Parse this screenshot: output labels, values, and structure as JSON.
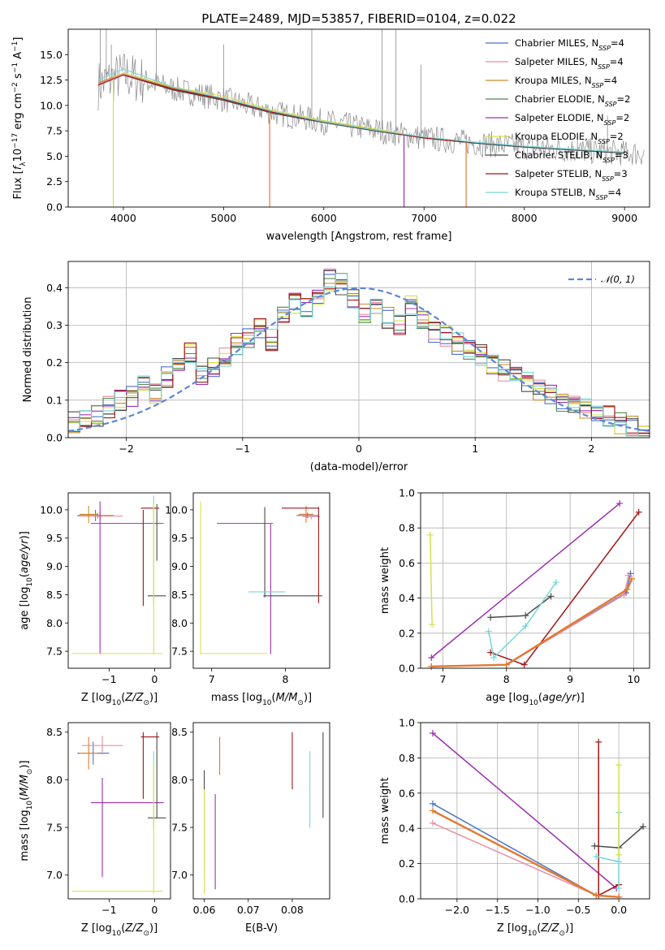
{
  "chart_data": [
    {
      "type": "line",
      "title": "PLATE=2489, MJD=53857, FIBERID=0104, z=0.022",
      "xlabel": "wavelength [Angstrom, rest frame]",
      "ylabel": "Flux [f_λ10^-17 erg cm^-2 s^-1 A^-1]",
      "xlim": [
        3450,
        9250
      ],
      "ylim": [
        0,
        17.5
      ],
      "xticks": [
        "4000",
        "5000",
        "6000",
        "7000",
        "8000",
        "9000"
      ],
      "yticks": [
        "0.0",
        "2.5",
        "5.0",
        "7.5",
        "10.0",
        "12.5",
        "15.0"
      ],
      "grid": false,
      "legend_position": "top-right",
      "series": [
        {
          "name": "Chabrier MILES, N_SSP=4",
          "color": "#4f72c4",
          "x": [
            3750,
            4000,
            4500,
            5000,
            5500,
            6000,
            6500,
            7000,
            7500,
            8000,
            8500,
            9000
          ],
          "values": [
            12.0,
            13.0,
            11.6,
            10.6,
            9.3,
            8.4,
            7.6,
            6.8,
            6.3,
            5.9,
            5.6,
            5.3
          ]
        },
        {
          "name": "Salpeter MILES, N_SSP=4",
          "color": "#e88fa3",
          "x": [
            3750,
            4000,
            4500,
            5000,
            5500,
            6000,
            6500,
            7000,
            7500
          ],
          "values": [
            12.1,
            13.1,
            11.7,
            10.7,
            9.3,
            8.4,
            7.6,
            6.8,
            6.3
          ]
        },
        {
          "name": "Kroupa MILES, N_SSP=4",
          "color": "#c88a2a",
          "x": [
            3750,
            4000,
            4500,
            5000,
            5500,
            6000,
            6500,
            7000,
            7500
          ],
          "values": [
            12.2,
            13.2,
            11.7,
            10.7,
            9.4,
            8.4,
            7.6,
            6.8,
            6.3
          ]
        },
        {
          "name": "Chabrier ELODIE, N_SSP=2",
          "color": "#4f8a4f",
          "x": [
            4000,
            4500,
            5000,
            5500,
            6000,
            6500,
            6800
          ],
          "values": [
            13.0,
            11.6,
            10.6,
            9.3,
            8.4,
            7.6,
            7.1
          ]
        },
        {
          "name": "Salpeter ELODIE, N_SSP=2",
          "color": "#9b30b0",
          "x": [
            4000,
            4500,
            5000,
            5500,
            6000,
            6500,
            6800
          ],
          "values": [
            13.0,
            11.6,
            10.6,
            9.3,
            8.4,
            7.6,
            7.1
          ]
        },
        {
          "name": "Kroupa ELODIE, N_SSP=2",
          "color": "#d6e04a",
          "x": [
            3900,
            4000,
            4500,
            5000,
            5500,
            6000,
            6500,
            6800
          ],
          "values": [
            12.8,
            13.2,
            11.8,
            10.9,
            9.5,
            8.5,
            7.7,
            7.2
          ]
        },
        {
          "name": "Chabrier STELIB, N_SSP=3",
          "color": "#4a4a4a",
          "x": [
            3750,
            4000,
            4500,
            5000,
            5500,
            6000,
            6500,
            7000,
            7500,
            8000,
            8500,
            9000
          ],
          "values": [
            12.0,
            13.0,
            11.5,
            10.5,
            9.2,
            8.3,
            7.5,
            6.8,
            6.3,
            5.9,
            5.6,
            5.3
          ]
        },
        {
          "name": "Salpeter STELIB, N_SSP=3",
          "color": "#a31515",
          "x": [
            3750,
            4000,
            4500,
            5000,
            5500,
            6000,
            6500,
            7000,
            7400
          ],
          "values": [
            12.0,
            13.0,
            11.6,
            10.6,
            9.3,
            8.4,
            7.6,
            6.8,
            6.4
          ]
        },
        {
          "name": "Kroupa STELIB, N_SSP=4",
          "color": "#78d6d6",
          "x": [
            3750,
            4000,
            4500,
            5000,
            5500,
            6000,
            6500,
            7000,
            7500,
            8000,
            8500,
            9000
          ],
          "values": [
            12.5,
            13.6,
            11.8,
            10.7,
            9.4,
            8.4,
            7.6,
            6.9,
            6.4,
            6.0,
            5.7,
            5.4
          ]
        }
      ]
    },
    {
      "type": "line",
      "xlabel": "(data-model)/error",
      "ylabel": "Normed distribution",
      "xlim": [
        -2.5,
        2.5
      ],
      "ylim": [
        0,
        0.47
      ],
      "xticks": [
        "−2",
        "−1",
        "0",
        "1",
        "2"
      ],
      "yticks": [
        "0.0",
        "0.1",
        "0.2",
        "0.3",
        "0.4"
      ],
      "grid": true,
      "legend_position": "top-right",
      "series": [
        {
          "name": "𝒩(0, 1)",
          "color": "#5f86d6",
          "style": "dashed",
          "x": [
            -2.5,
            -2.0,
            -1.5,
            -1.0,
            -0.5,
            0,
            0.5,
            1.0,
            1.5,
            2.0,
            2.5
          ],
          "values": [
            0.018,
            0.054,
            0.13,
            0.242,
            0.352,
            0.399,
            0.352,
            0.242,
            0.13,
            0.054,
            0.018
          ]
        }
      ],
      "histogram": {
        "bin_edges": [
          -2.5,
          -2.4,
          -2.3,
          -2.2,
          -2.1,
          -2.0,
          -1.9,
          -1.8,
          -1.7,
          -1.6,
          -1.5,
          -1.4,
          -1.3,
          -1.2,
          -1.1,
          -1.0,
          -0.9,
          -0.8,
          -0.7,
          -0.6,
          -0.5,
          -0.4,
          -0.3,
          -0.2,
          -0.1,
          0.0,
          0.1,
          0.2,
          0.3,
          0.4,
          0.5,
          0.6,
          0.7,
          0.8,
          0.9,
          1.0,
          1.1,
          1.2,
          1.3,
          1.4,
          1.5,
          1.6,
          1.7,
          1.8,
          1.9,
          2.0,
          2.1,
          2.2,
          2.3,
          2.4,
          2.5
        ],
        "densities": [
          0.04,
          0.05,
          0.06,
          0.08,
          0.1,
          0.11,
          0.15,
          0.12,
          0.16,
          0.19,
          0.23,
          0.17,
          0.19,
          0.21,
          0.25,
          0.27,
          0.29,
          0.26,
          0.33,
          0.36,
          0.35,
          0.38,
          0.42,
          0.41,
          0.37,
          0.33,
          0.36,
          0.32,
          0.3,
          0.35,
          0.31,
          0.28,
          0.27,
          0.25,
          0.23,
          0.22,
          0.2,
          0.18,
          0.16,
          0.15,
          0.13,
          0.12,
          0.1,
          0.09,
          0.08,
          0.07,
          0.06,
          0.04,
          0.03,
          0.02
        ],
        "colors": [
          "#4f72c4",
          "#e88fa3",
          "#c88a2a",
          "#4f8a4f",
          "#9b30b0",
          "#d6e04a",
          "#4a4a4a",
          "#a31515",
          "#78d6d6"
        ]
      }
    },
    {
      "type": "scatter",
      "xlabel": "Z [log10(Z/Z⊙)]",
      "ylabel": "age [log10(age/yr)]",
      "xlim": [
        -1.9,
        0.35
      ],
      "ylim": [
        7.2,
        10.3
      ],
      "xticks": [
        "−1",
        "0"
      ],
      "yticks": [
        "7.5",
        "8.0",
        "8.5",
        "9.0",
        "9.5",
        "10.0"
      ]
    },
    {
      "type": "scatter",
      "xlabel": "mass [log10(M/M⊙)]",
      "ylabel": "",
      "xlim": [
        6.75,
        8.6
      ],
      "ylim": [
        7.2,
        10.3
      ],
      "xticks": [
        "7",
        "8"
      ],
      "yticks": [
        "7.5",
        "8.0",
        "8.5",
        "9.0",
        "9.5",
        "10.0"
      ]
    },
    {
      "type": "line",
      "xlabel": "age [log10(age/yr)]",
      "ylabel": "mass weight",
      "xlim": [
        6.65,
        10.25
      ],
      "ylim": [
        0,
        1.0
      ],
      "xticks": [
        "7",
        "8",
        "9",
        "10"
      ],
      "yticks": [
        "0.0",
        "0.2",
        "0.4",
        "0.6",
        "0.8",
        "1.0"
      ],
      "grid": true,
      "series": [
        {
          "name": "",
          "color": "#9b30b0",
          "x": [
            6.82,
            9.78
          ],
          "values": [
            0.06,
            0.94
          ]
        },
        {
          "name": "",
          "color": "#a31515",
          "x": [
            7.75,
            8.28,
            10.08
          ],
          "values": [
            0.09,
            0.02,
            0.89
          ]
        },
        {
          "name": "",
          "color": "#4a4a4a",
          "x": [
            7.75,
            8.3,
            8.7
          ],
          "values": [
            0.29,
            0.3,
            0.41
          ]
        },
        {
          "name": "",
          "color": "#78d6d6",
          "x": [
            7.72,
            7.8,
            8.3,
            8.78
          ],
          "values": [
            0.21,
            0.06,
            0.24,
            0.49
          ]
        },
        {
          "name": "",
          "color": "#d6e04a",
          "x": [
            6.8,
            6.83
          ],
          "values": [
            0.76,
            0.25
          ]
        },
        {
          "name": "",
          "color": "#4f72c4",
          "x": [
            6.82,
            8.0,
            9.88,
            9.95
          ],
          "values": [
            0.01,
            0.02,
            0.43,
            0.54
          ]
        },
        {
          "name": "",
          "color": "#e88fa3",
          "x": [
            6.82,
            8.0,
            9.85,
            9.92
          ],
          "values": [
            0.01,
            0.02,
            0.42,
            0.53
          ]
        },
        {
          "name": "",
          "color": "#e07a30",
          "x": [
            6.82,
            8.0,
            9.9,
            9.97
          ],
          "values": [
            0.01,
            0.02,
            0.45,
            0.51
          ]
        }
      ]
    },
    {
      "type": "scatter",
      "xlabel": "Z [log10(Z/Z⊙)]",
      "ylabel": "mass [log10(M/M⊙)]",
      "xlim": [
        -1.9,
        0.35
      ],
      "ylim": [
        6.75,
        8.6
      ],
      "xticks": [
        "−1",
        "0"
      ],
      "yticks": [
        "7.0",
        "7.5",
        "8.0",
        "8.5"
      ]
    },
    {
      "type": "scatter",
      "xlabel": "E(B-V)",
      "ylabel": "",
      "xlim": [
        0.0575,
        0.0885
      ],
      "ylim": [
        6.75,
        8.6
      ],
      "xticks": [
        "0.06",
        "0.07",
        "0.08"
      ],
      "yticks": [
        "7.0",
        "7.5",
        "8.0",
        "8.5"
      ]
    },
    {
      "type": "line",
      "xlabel": "Z [log10(Z/Z⊙)]",
      "ylabel": "mass weight",
      "xlim": [
        -2.45,
        0.38
      ],
      "ylim": [
        0,
        1.0
      ],
      "xticks": [
        "−2.0",
        "−1.5",
        "−1.0",
        "−0.5",
        "0.0"
      ],
      "yticks": [
        "0.0",
        "0.2",
        "0.4",
        "0.6",
        "0.8",
        "1.0"
      ],
      "grid": true,
      "series": [
        {
          "name": "",
          "color": "#9b30b0",
          "x": [
            -2.3,
            -0.03
          ],
          "values": [
            0.94,
            0.06
          ]
        },
        {
          "name": "",
          "color": "#a31515",
          "x": [
            -0.25,
            -0.25,
            0.0
          ],
          "values": [
            0.89,
            0.02,
            0.08
          ]
        },
        {
          "name": "",
          "color": "#4a4a4a",
          "x": [
            -0.3,
            0.0,
            0.3
          ],
          "values": [
            0.3,
            0.29,
            0.41
          ]
        },
        {
          "name": "",
          "color": "#78d6d6",
          "x": [
            -0.28,
            0.0,
            0.0,
            0.0
          ],
          "values": [
            0.24,
            0.21,
            0.06,
            0.49
          ]
        },
        {
          "name": "",
          "color": "#d6e04a",
          "x": [
            0.0,
            0.0
          ],
          "values": [
            0.76,
            0.25
          ]
        },
        {
          "name": "",
          "color": "#4f72c4",
          "x": [
            -2.3,
            -0.28,
            0.0
          ],
          "values": [
            0.54,
            0.02,
            0.01
          ]
        },
        {
          "name": "",
          "color": "#e88fa3",
          "x": [
            -2.3,
            -0.28,
            0.0
          ],
          "values": [
            0.43,
            0.02,
            0.01
          ]
        },
        {
          "name": "",
          "color": "#e07a30",
          "x": [
            -2.3,
            -0.28,
            0.0
          ],
          "values": [
            0.5,
            0.02,
            0.01
          ]
        }
      ]
    }
  ]
}
